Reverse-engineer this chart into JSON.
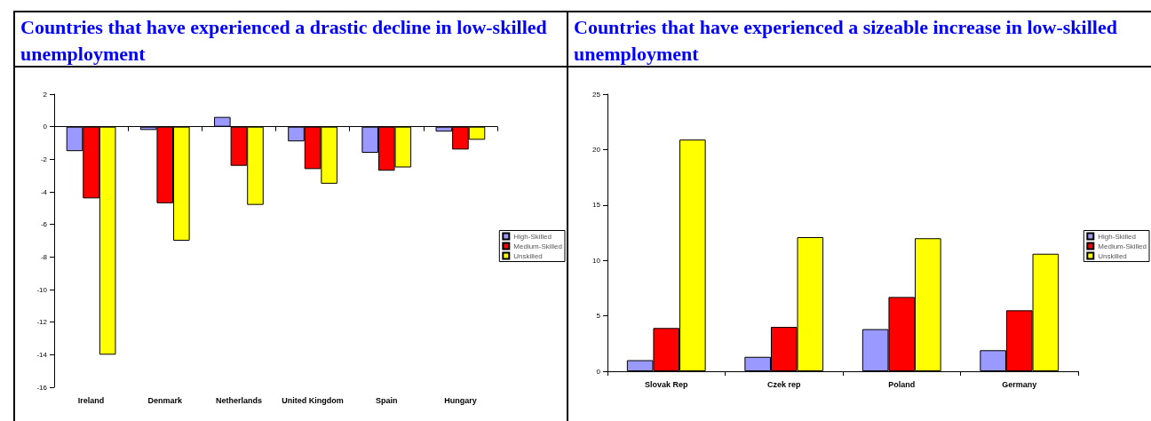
{
  "chart_data": [
    {
      "type": "bar",
      "title": "Countries that have experienced a drastic decline in low-skilled unemployment",
      "categories": [
        "Ireland",
        "Denmark",
        "Netherlands",
        "United Kingdom",
        "Spain",
        "Hungary"
      ],
      "series": [
        {
          "name": "High-Skilled",
          "color": "#9999ff",
          "values": [
            -1.5,
            -0.2,
            0.6,
            -0.9,
            -1.6,
            -0.3
          ]
        },
        {
          "name": "Medium-Skilled",
          "color": "#ff0000",
          "values": [
            -4.4,
            -4.7,
            -2.4,
            -2.6,
            -2.7,
            -1.4
          ]
        },
        {
          "name": "Unskilled",
          "color": "#ffff00",
          "values": [
            -14,
            -7,
            -4.8,
            -3.5,
            -2.5,
            -0.8
          ]
        }
      ],
      "ylim": [
        -16,
        2
      ],
      "yticks": [
        -16,
        -14,
        -12,
        -10,
        -8,
        -6,
        -4,
        -2,
        0,
        2
      ],
      "legend": "right"
    },
    {
      "type": "bar",
      "title": "Countries that have experienced a sizeable increase in low-skilled unemployment",
      "categories": [
        "Slovak Rep",
        "Czek rep",
        "Poland",
        "Germany"
      ],
      "series": [
        {
          "name": "High-Skilled",
          "color": "#9999ff",
          "values": [
            1.0,
            1.3,
            3.8,
            1.9
          ]
        },
        {
          "name": "Medium-Skilled",
          "color": "#ff0000",
          "values": [
            3.9,
            4.0,
            6.7,
            5.5
          ]
        },
        {
          "name": "Unskilled",
          "color": "#ffff00",
          "values": [
            20.9,
            12.1,
            12.0,
            10.6
          ]
        }
      ],
      "ylim": [
        0,
        25
      ],
      "yticks": [
        0,
        5,
        10,
        15,
        20,
        25
      ],
      "grid": false,
      "legend": "right"
    }
  ]
}
